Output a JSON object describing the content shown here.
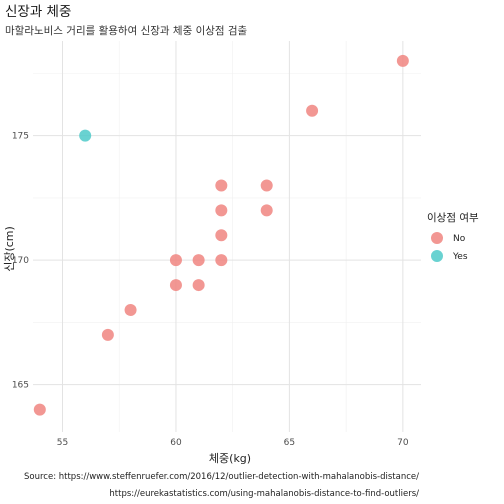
{
  "chart_data": {
    "type": "scatter",
    "title": "신장과 체중",
    "subtitle": "마할라노비스 거리를 활용하여 신장과 체중 이상점 검출",
    "xlabel": "체중(kg)",
    "ylabel": "신장(cm)",
    "xlim": [
      53.7,
      70.8
    ],
    "ylim": [
      163.1,
      178.8
    ],
    "x_ticks": [
      55,
      60,
      65,
      70
    ],
    "y_ticks": [
      165,
      170,
      175
    ],
    "grid": true,
    "legend": {
      "title": "이상점 여부",
      "placement": "right",
      "entries": [
        {
          "label": "No",
          "color": "#f08580"
        },
        {
          "label": "Yes",
          "color": "#4fcac9"
        }
      ]
    },
    "series": [
      {
        "name": "No",
        "color": "#f08580",
        "points": [
          [
            54,
            164
          ],
          [
            57,
            167
          ],
          [
            58,
            168
          ],
          [
            60,
            169
          ],
          [
            60,
            170
          ],
          [
            61,
            169
          ],
          [
            61,
            170
          ],
          [
            62,
            170
          ],
          [
            62,
            171
          ],
          [
            62,
            172
          ],
          [
            62,
            173
          ],
          [
            64,
            172
          ],
          [
            64,
            173
          ],
          [
            66,
            176
          ],
          [
            70,
            178
          ]
        ]
      },
      {
        "name": "Yes",
        "color": "#4fcac9",
        "points": [
          [
            56,
            175
          ]
        ]
      }
    ],
    "captions": [
      "Source: https://www.steffenruefer.com/2016/12/outlier-detection-with-mahalanobis-distance/",
      "https://eurekastatistics.com/using-mahalanobis-distance-to-find-outliers/"
    ]
  }
}
